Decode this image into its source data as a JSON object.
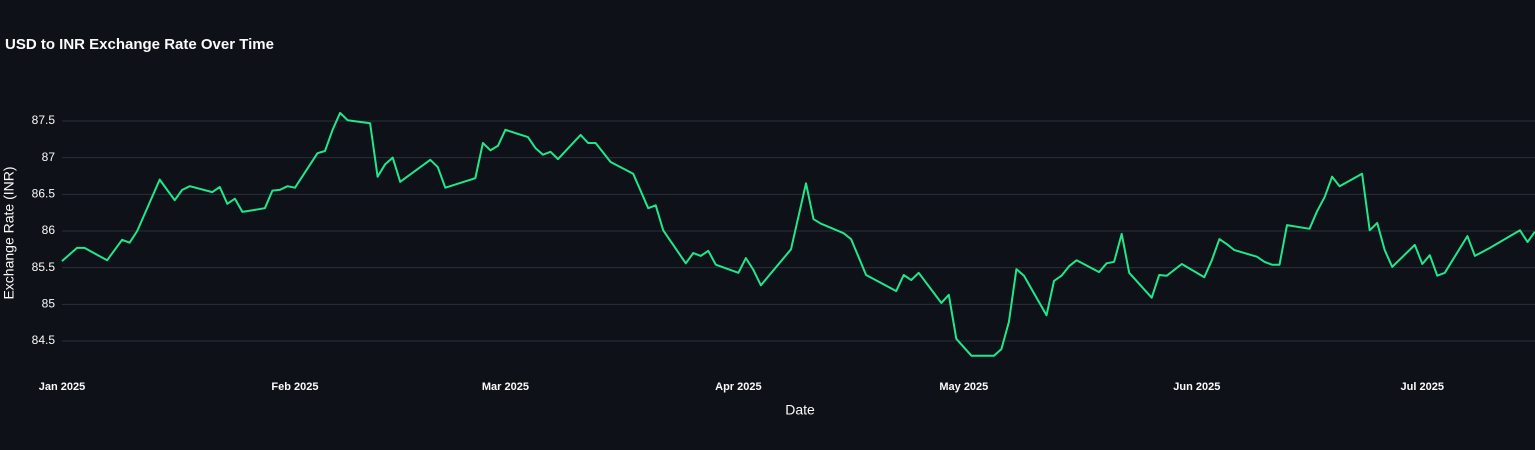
{
  "chart_data": {
    "type": "line",
    "title": "USD to INR Exchange Rate Over Time",
    "x_label": "Date",
    "y_label": "Exchange Rate (INR)",
    "color": "#1ee88a",
    "grid": true,
    "x": [
      0,
      2,
      3,
      6,
      8,
      9,
      10,
      13,
      15,
      16,
      17,
      20,
      21,
      22,
      23,
      24,
      27,
      28,
      29,
      30,
      31,
      34,
      35,
      36,
      37,
      38,
      41,
      42,
      43,
      44,
      45,
      49,
      50,
      51,
      55,
      56,
      57,
      58,
      59,
      62,
      63,
      64,
      65,
      66,
      69,
      70,
      71,
      73,
      76,
      78,
      79,
      80,
      83,
      84,
      85,
      86,
      87,
      90,
      91,
      92,
      93,
      97,
      99,
      100,
      101,
      104,
      105,
      107,
      111,
      112,
      113,
      114,
      117,
      118,
      119,
      121,
      124,
      125,
      126,
      127,
      128,
      131,
      132,
      133,
      134,
      135,
      138,
      139,
      140,
      141,
      142,
      145,
      146,
      147,
      149,
      152,
      153,
      154,
      155,
      156,
      159,
      160,
      161,
      162,
      163,
      166,
      167,
      168,
      169,
      170,
      173,
      174,
      175,
      176,
      177,
      180,
      181,
      182,
      183,
      184,
      187,
      188,
      190,
      194,
      195,
      196
    ],
    "values": [
      85.59,
      85.77,
      85.77,
      85.6,
      85.88,
      85.84,
      86.0,
      86.7,
      86.42,
      86.56,
      86.61,
      86.53,
      86.6,
      86.37,
      86.44,
      86.26,
      86.31,
      86.55,
      86.56,
      86.61,
      86.59,
      87.06,
      87.09,
      87.38,
      87.61,
      87.51,
      87.47,
      86.74,
      86.91,
      87.0,
      86.67,
      86.97,
      86.87,
      86.59,
      86.72,
      87.2,
      87.1,
      87.16,
      87.38,
      87.28,
      87.13,
      87.04,
      87.08,
      86.98,
      87.31,
      87.2,
      87.2,
      86.94,
      86.78,
      86.31,
      86.35,
      86.01,
      85.56,
      85.7,
      85.66,
      85.73,
      85.54,
      85.43,
      85.63,
      85.47,
      85.26,
      85.75,
      86.65,
      86.16,
      86.1,
      85.97,
      85.89,
      85.4,
      85.18,
      85.4,
      85.33,
      85.43,
      85.02,
      85.13,
      84.53,
      84.3,
      84.3,
      84.39,
      84.76,
      85.48,
      85.39,
      84.85,
      85.32,
      85.39,
      85.52,
      85.6,
      85.44,
      85.56,
      85.58,
      85.96,
      85.43,
      85.09,
      85.4,
      85.39,
      85.55,
      85.37,
      85.6,
      85.89,
      85.82,
      85.74,
      85.65,
      85.58,
      85.54,
      85.54,
      86.08,
      86.03,
      86.27,
      86.46,
      86.74,
      86.61,
      86.78,
      86.01,
      86.11,
      85.74,
      85.51,
      85.81,
      85.55,
      85.67,
      85.39,
      85.43,
      85.93,
      85.66,
      85.77,
      86.01,
      85.85,
      85.99
    ],
    "xlim": [
      0,
      196
    ],
    "xticks": [
      {
        "value": 0,
        "label": "Jan 2025"
      },
      {
        "value": 31,
        "label": "Feb 2025"
      },
      {
        "value": 59,
        "label": "Mar 2025"
      },
      {
        "value": 90,
        "label": "Apr 2025"
      },
      {
        "value": 120,
        "label": "May 2025"
      },
      {
        "value": 151,
        "label": "Jun 2025"
      },
      {
        "value": 181,
        "label": "Jul 2025"
      }
    ],
    "ylim": [
      84.2,
      88
    ],
    "yticks": [
      84.5,
      85,
      85.5,
      86,
      86.5,
      87,
      87.5
    ]
  }
}
